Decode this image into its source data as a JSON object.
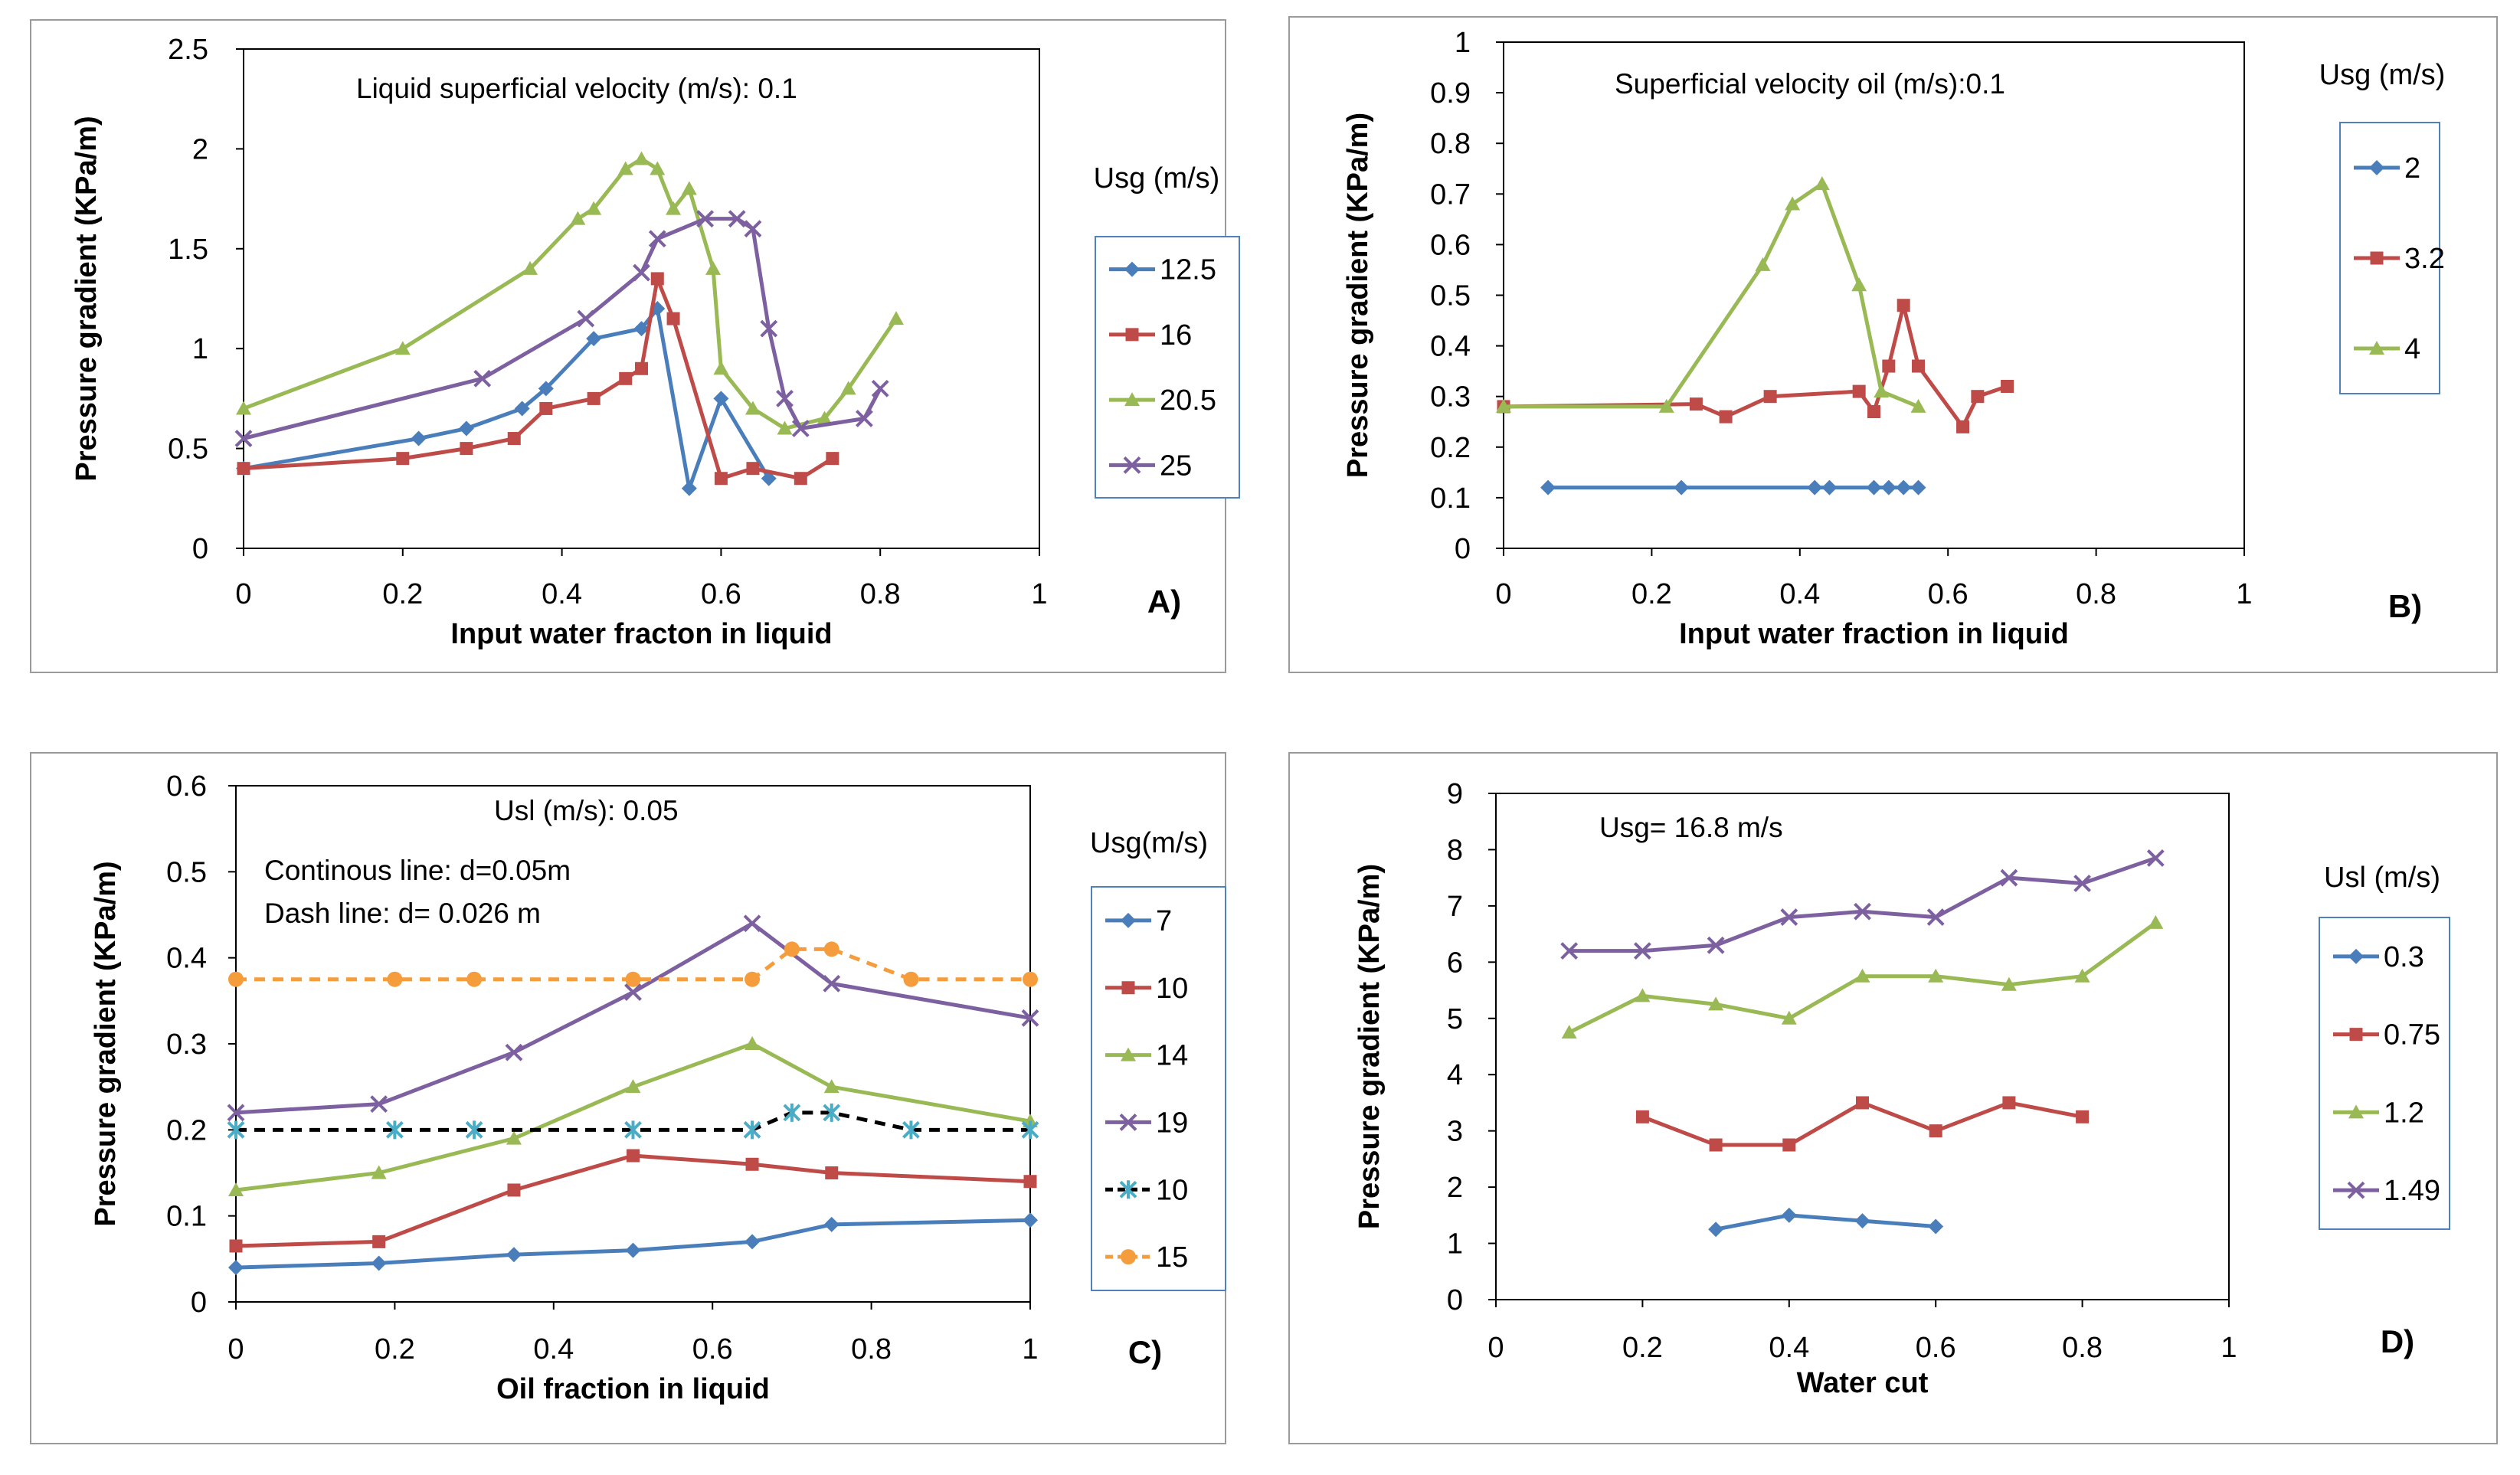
{
  "figure": {
    "panels": [
      "A",
      "B",
      "C",
      "D"
    ]
  },
  "colors": {
    "blue": "#4a7ebb",
    "red": "#be4b48",
    "green": "#98b954",
    "purple": "#7d60a0",
    "black": "#000000",
    "orange": "#f59d3d",
    "axis": "#000000",
    "frame": "#9a9a9a",
    "legend_border": "#4f81bd",
    "cyan": "#4bacc6"
  },
  "chart_data": [
    {
      "id": "A",
      "type": "line",
      "panel_label": "A)",
      "annotations": [
        "Liquid superficial velocity (m/s): 0.1"
      ],
      "xlabel": "Input water fracton in liquid",
      "ylabel": "Pressure gradient (KPa/m)",
      "xlim": [
        0,
        1
      ],
      "ylim": [
        0,
        2.5
      ],
      "xticks": [
        0,
        0.2,
        0.4,
        0.6,
        0.8,
        1
      ],
      "xtick_labels": [
        "0",
        "0.2",
        "0.4",
        "0.6",
        "0.8",
        "1"
      ],
      "yticks": [
        0,
        0.5,
        1,
        1.5,
        2,
        2.5
      ],
      "ytick_labels": [
        "0",
        "0.5",
        "1",
        "1.5",
        "2",
        "2.5"
      ],
      "legend_title": "Usg (m/s)",
      "series": [
        {
          "name": "12.5",
          "color": "blue",
          "marker": "diamond",
          "dash": false,
          "x": [
            0,
            0.22,
            0.28,
            0.35,
            0.38,
            0.44,
            0.5,
            0.52,
            0.56,
            0.6,
            0.66
          ],
          "y": [
            0.4,
            0.55,
            0.6,
            0.7,
            0.8,
            1.05,
            1.1,
            1.2,
            0.3,
            0.75,
            0.35
          ]
        },
        {
          "name": "16",
          "color": "red",
          "marker": "square",
          "dash": false,
          "x": [
            0,
            0.2,
            0.28,
            0.34,
            0.38,
            0.44,
            0.48,
            0.5,
            0.52,
            0.54,
            0.6,
            0.64,
            0.7,
            0.74
          ],
          "y": [
            0.4,
            0.45,
            0.5,
            0.55,
            0.7,
            0.75,
            0.85,
            0.9,
            1.35,
            1.15,
            0.35,
            0.4,
            0.35,
            0.45
          ]
        },
        {
          "name": "20.5",
          "color": "green",
          "marker": "triangle",
          "dash": false,
          "x": [
            0,
            0.2,
            0.36,
            0.42,
            0.44,
            0.48,
            0.5,
            0.52,
            0.54,
            0.56,
            0.59,
            0.6,
            0.64,
            0.68,
            0.73,
            0.76,
            0.82
          ],
          "y": [
            0.7,
            1.0,
            1.4,
            1.65,
            1.7,
            1.9,
            1.95,
            1.9,
            1.7,
            1.8,
            1.4,
            0.9,
            0.7,
            0.6,
            0.65,
            0.8,
            1.15
          ]
        },
        {
          "name": "25",
          "color": "purple",
          "marker": "x",
          "dash": false,
          "x": [
            0,
            0.3,
            0.43,
            0.5,
            0.52,
            0.58,
            0.62,
            0.64,
            0.66,
            0.68,
            0.7,
            0.78,
            0.8
          ],
          "y": [
            0.55,
            0.85,
            1.15,
            1.38,
            1.55,
            1.65,
            1.65,
            1.6,
            1.1,
            0.75,
            0.6,
            0.65,
            0.8
          ]
        }
      ]
    },
    {
      "id": "B",
      "type": "line",
      "panel_label": "B)",
      "annotations": [
        "Superficial velocity oil (m/s):0.1"
      ],
      "xlabel": "Input water fraction in liquid",
      "ylabel": "Pressure gradient (KPa/m)",
      "xlim": [
        0,
        1
      ],
      "ylim": [
        0,
        1
      ],
      "xticks": [
        0,
        0.2,
        0.4,
        0.6,
        0.8,
        1
      ],
      "xtick_labels": [
        "0",
        "0.2",
        "0.4",
        "0.6",
        "0.8",
        "1"
      ],
      "yticks": [
        0,
        0.1,
        0.2,
        0.3,
        0.4,
        0.5,
        0.6,
        0.7,
        0.8,
        0.9,
        1
      ],
      "ytick_labels": [
        "0",
        "0.1",
        "0.2",
        "0.3",
        "0.4",
        "0.5",
        "0.6",
        "0.7",
        "0.8",
        "0.9",
        "1"
      ],
      "legend_title": "Usg (m/s)",
      "series": [
        {
          "name": "2",
          "color": "blue",
          "marker": "diamond",
          "dash": false,
          "x": [
            0.06,
            0.24,
            0.42,
            0.44,
            0.5,
            0.52,
            0.54,
            0.56
          ],
          "y": [
            0.12,
            0.12,
            0.12,
            0.12,
            0.12,
            0.12,
            0.12,
            0.12
          ]
        },
        {
          "name": "3.2",
          "color": "red",
          "marker": "square",
          "dash": false,
          "x": [
            0,
            0.26,
            0.3,
            0.36,
            0.48,
            0.5,
            0.52,
            0.54,
            0.56,
            0.62,
            0.64,
            0.68
          ],
          "y": [
            0.28,
            0.285,
            0.26,
            0.3,
            0.31,
            0.27,
            0.36,
            0.48,
            0.36,
            0.24,
            0.3,
            0.32
          ]
        },
        {
          "name": "4",
          "color": "green",
          "marker": "triangle",
          "dash": false,
          "x": [
            0,
            0.22,
            0.35,
            0.39,
            0.43,
            0.48,
            0.51,
            0.56
          ],
          "y": [
            0.28,
            0.28,
            0.56,
            0.68,
            0.72,
            0.52,
            0.31,
            0.28
          ]
        }
      ]
    },
    {
      "id": "C",
      "type": "line",
      "panel_label": "C)",
      "annotations": [
        "Usl (m/s): 0.05",
        "Continous line: d=0.05m",
        "Dash line: d= 0.026 m"
      ],
      "xlabel": "Oil fraction in liquid",
      "ylabel": "Pressure gradient (KPa/m)",
      "xlim": [
        0,
        1
      ],
      "ylim": [
        0,
        0.6
      ],
      "xticks": [
        0,
        0.2,
        0.4,
        0.6,
        0.8,
        1
      ],
      "xtick_labels": [
        "0",
        "0.2",
        "0.4",
        "0.6",
        "0.8",
        "1"
      ],
      "yticks": [
        0,
        0.1,
        0.2,
        0.3,
        0.4,
        0.5,
        0.6
      ],
      "ytick_labels": [
        "0",
        "0.1",
        "0.2",
        "0.3",
        "0.4",
        "0.5",
        "0.6"
      ],
      "legend_title": "Usg(m/s)",
      "series": [
        {
          "name": "7",
          "color": "blue",
          "marker": "diamond",
          "dash": false,
          "x": [
            0,
            0.18,
            0.35,
            0.5,
            0.65,
            0.75,
            1
          ],
          "y": [
            0.04,
            0.045,
            0.055,
            0.06,
            0.07,
            0.09,
            0.095
          ]
        },
        {
          "name": "10",
          "color": "red",
          "marker": "square",
          "dash": false,
          "x": [
            0,
            0.18,
            0.35,
            0.5,
            0.65,
            0.75,
            1
          ],
          "y": [
            0.065,
            0.07,
            0.13,
            0.17,
            0.16,
            0.15,
            0.14
          ]
        },
        {
          "name": "14",
          "color": "green",
          "marker": "triangle",
          "dash": false,
          "x": [
            0,
            0.18,
            0.35,
            0.5,
            0.65,
            0.75,
            1
          ],
          "y": [
            0.13,
            0.15,
            0.19,
            0.25,
            0.3,
            0.25,
            0.21
          ]
        },
        {
          "name": "19",
          "color": "purple",
          "marker": "x",
          "dash": false,
          "x": [
            0,
            0.18,
            0.35,
            0.5,
            0.65,
            0.75,
            1
          ],
          "y": [
            0.22,
            0.23,
            0.29,
            0.36,
            0.44,
            0.37,
            0.33
          ]
        },
        {
          "name": "10",
          "color": "black",
          "marker": "star",
          "dash": true,
          "x": [
            0,
            0.2,
            0.3,
            0.5,
            0.65,
            0.7,
            0.75,
            0.85,
            1
          ],
          "y": [
            0.2,
            0.2,
            0.2,
            0.2,
            0.2,
            0.22,
            0.22,
            0.2,
            0.2
          ]
        },
        {
          "name": "15",
          "color": "orange",
          "marker": "circle",
          "dash": true,
          "x": [
            0,
            0.2,
            0.3,
            0.5,
            0.65,
            0.7,
            0.75,
            0.85,
            1
          ],
          "y": [
            0.375,
            0.375,
            0.375,
            0.375,
            0.375,
            0.41,
            0.41,
            0.375,
            0.375
          ]
        }
      ]
    },
    {
      "id": "D",
      "type": "line",
      "panel_label": "D)",
      "annotations": [
        "Usg= 16.8 m/s"
      ],
      "xlabel": "Water cut",
      "ylabel": "Pressure gradient (KPa/m)",
      "xlim": [
        0,
        1
      ],
      "ylim": [
        0,
        9
      ],
      "xticks": [
        0,
        0.2,
        0.4,
        0.6,
        0.8,
        1
      ],
      "xtick_labels": [
        "0",
        "0.2",
        "0.4",
        "0.6",
        "0.8",
        "1"
      ],
      "yticks": [
        0,
        1,
        2,
        3,
        4,
        5,
        6,
        7,
        8,
        9
      ],
      "ytick_labels": [
        "0",
        "1",
        "2",
        "3",
        "4",
        "5",
        "6",
        "7",
        "8",
        "9"
      ],
      "legend_title": "Usl (m/s)",
      "series": [
        {
          "name": "0.3",
          "color": "blue",
          "marker": "diamond",
          "dash": false,
          "x": [
            0.3,
            0.4,
            0.5,
            0.6
          ],
          "y": [
            1.25,
            1.5,
            1.4,
            1.3
          ]
        },
        {
          "name": "0.75",
          "color": "red",
          "marker": "square",
          "dash": false,
          "x": [
            0.2,
            0.3,
            0.4,
            0.5,
            0.6,
            0.7,
            0.8
          ],
          "y": [
            3.25,
            2.75,
            2.75,
            3.5,
            3.0,
            3.5,
            3.25
          ]
        },
        {
          "name": "1.2",
          "color": "green",
          "marker": "triangle",
          "dash": false,
          "x": [
            0.1,
            0.2,
            0.3,
            0.4,
            0.5,
            0.6,
            0.7,
            0.8,
            0.9
          ],
          "y": [
            4.75,
            5.4,
            5.25,
            5.0,
            5.75,
            5.75,
            5.6,
            5.75,
            6.7
          ]
        },
        {
          "name": "1.49",
          "color": "purple",
          "marker": "x",
          "dash": false,
          "x": [
            0.1,
            0.2,
            0.3,
            0.4,
            0.5,
            0.6,
            0.7,
            0.8,
            0.9
          ],
          "y": [
            6.2,
            6.2,
            6.3,
            6.8,
            6.9,
            6.8,
            7.5,
            7.4,
            7.85
          ]
        }
      ]
    }
  ]
}
